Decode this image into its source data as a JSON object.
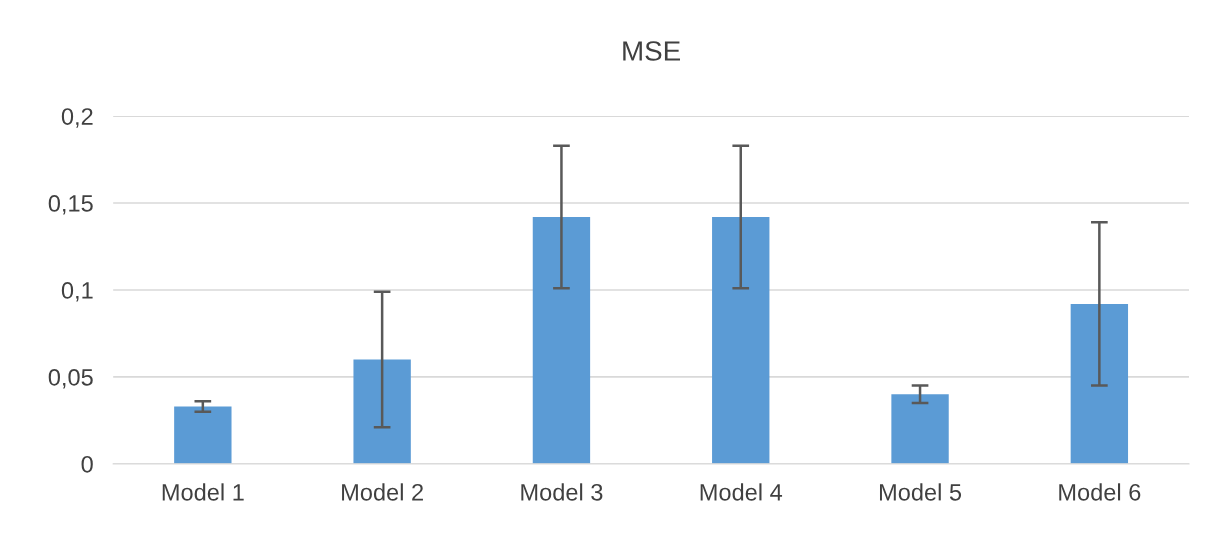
{
  "chart_data": {
    "type": "bar",
    "title": "MSE",
    "categories": [
      "Model 1",
      "Model 2",
      "Model 3",
      "Model 4",
      "Model 5",
      "Model 6"
    ],
    "values": [
      0.033,
      0.06,
      0.142,
      0.142,
      0.04,
      0.092
    ],
    "errors": [
      0.003,
      0.039,
      0.041,
      0.041,
      0.005,
      0.047
    ],
    "color": "#5b9bd5",
    "ylim": [
      0,
      0.2
    ],
    "yticks": [
      {
        "value": 0,
        "label": "0"
      },
      {
        "value": 0.05,
        "label": "0,05"
      },
      {
        "value": 0.1,
        "label": "0,1"
      },
      {
        "value": 0.15,
        "label": "0,15"
      },
      {
        "value": 0.2,
        "label": "0,2"
      }
    ],
    "grid": "y",
    "legend": false
  }
}
